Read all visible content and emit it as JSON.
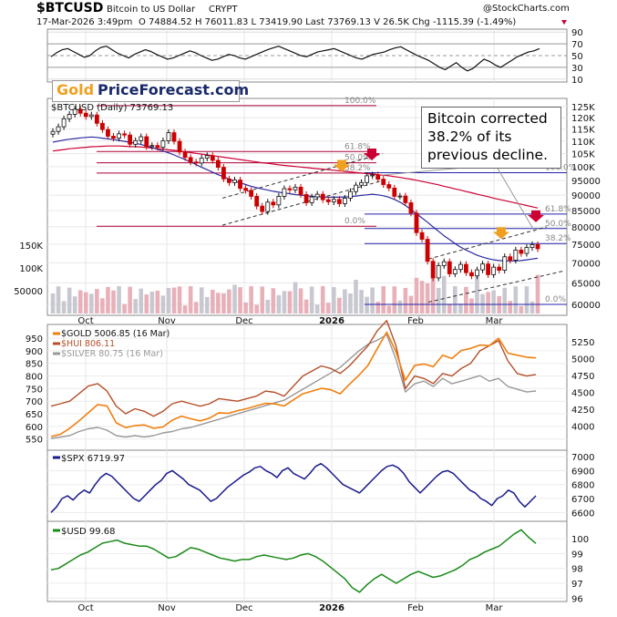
{
  "header": {
    "symbol": "$BTCUSD",
    "name": "Bitcoin to US Dollar",
    "exchange": "CRYPT",
    "brand": "@StockCharts.com",
    "datetime": "17-Mar-2026 3:49pm",
    "ohlc": "O 74884.52  H 76011.83  L 73419.90  Last 73769.13  V 26.5K  Chg -1115.39 (-1.49%)"
  },
  "logo": {
    "gold": "Gold",
    "rest": "PriceForecast.com"
  },
  "annotation": [
    "Bitcoin corrected",
    "38.2% of its",
    "previous decline."
  ],
  "colors": {
    "candle_up": "#111111",
    "candle_down": "#cc0000",
    "ma_short": "#2a2aa0",
    "ma_long": "#cc0033",
    "gold": "#f07f0f",
    "hui": "#b5502a",
    "silver": "#999999",
    "spx": "#1a1a8c",
    "usd": "#1a8a1a",
    "fib_red": "#aa0033",
    "fib_blue": "#2222aa",
    "arrow_orange": "#f0a020",
    "arrow_red": "#cc0033"
  },
  "chart_data": [
    {
      "type": "line",
      "panel": "RSI",
      "y_ticks": [
        10,
        30,
        50,
        70,
        90
      ],
      "ylim": [
        5,
        95
      ],
      "values": [
        48,
        55,
        60,
        62,
        57,
        52,
        47,
        50,
        58,
        64,
        66,
        60,
        54,
        50,
        46,
        52,
        56,
        60,
        57,
        52,
        48,
        44,
        46,
        50,
        54,
        58,
        55,
        50,
        46,
        42,
        44,
        48,
        52,
        50,
        46,
        44,
        48,
        52,
        56,
        60,
        63,
        66,
        62,
        58,
        54,
        50,
        48,
        52,
        56,
        58,
        60,
        62,
        58,
        54,
        50,
        46,
        44,
        48,
        52,
        54,
        56,
        60,
        63,
        65,
        60,
        55,
        50,
        46,
        42,
        36,
        30,
        26,
        32,
        38,
        30,
        24,
        28,
        36,
        44,
        40,
        34,
        30,
        36,
        42,
        48,
        52,
        56,
        58,
        62
      ]
    },
    {
      "type": "candlestick",
      "panel": "price",
      "title": "$BTCUSD (Daily) 73769.13",
      "y_ticks": [
        60000,
        65000,
        70000,
        75000,
        80000,
        85000,
        90000,
        95000,
        100000,
        105000,
        110000,
        115000,
        120000,
        125000
      ],
      "y_tick_labels": [
        "60000",
        "65000",
        "70000",
        "75000",
        "80000",
        "85000",
        "90000",
        "95000",
        "100K",
        "105K",
        "110K",
        "115K",
        "120K",
        "125K"
      ],
      "ylim": [
        58000,
        128000
      ],
      "scale": "log",
      "x_labels": [
        "Oct",
        "Nov",
        "Dec",
        "2026",
        "Feb",
        "Mar"
      ],
      "close": [
        114000,
        116000,
        119500,
        121500,
        123800,
        122000,
        120500,
        121200,
        117500,
        114800,
        112000,
        111200,
        113000,
        112500,
        108700,
        110200,
        111800,
        107800,
        108200,
        107500,
        110100,
        113500,
        109900,
        105600,
        103500,
        101800,
        101400,
        103300,
        104200,
        102400,
        99800,
        95600,
        94300,
        95200,
        92300,
        91600,
        89600,
        86400,
        84700,
        87700,
        86800,
        89600,
        92200,
        91800,
        92700,
        90200,
        87500,
        89400,
        90300,
        88500,
        87800,
        88600,
        87200,
        89000,
        91200,
        93400,
        94300,
        96700,
        97000,
        95500,
        93600,
        92400,
        89600,
        89700,
        87500,
        84200,
        78300,
        76400,
        70400,
        66200,
        69300,
        70300,
        67200,
        68300,
        69600,
        67500,
        66700,
        68200,
        69700,
        67000,
        68900,
        68100,
        71600,
        70700,
        73400,
        72500,
        74100,
        74900,
        73769
      ],
      "ma_short": [
        109500,
        110000,
        110400,
        110800,
        111000,
        111300,
        111500,
        111700,
        111500,
        111200,
        110900,
        110600,
        110300,
        109900,
        109500,
        109100,
        108600,
        108000,
        107400,
        106700,
        106000,
        105300,
        104500,
        103600,
        102700,
        101800,
        100800,
        99800,
        98900,
        98000,
        97100,
        96300,
        95500,
        94800,
        94200,
        93600,
        93000,
        92500,
        92100,
        91700,
        91300,
        91000,
        90700,
        90500,
        90200,
        90000,
        89800,
        89600,
        89500,
        89400,
        89300,
        89300,
        89300,
        89400,
        89500,
        89700,
        89900,
        90100,
        90300,
        90100,
        89800,
        89300,
        88600,
        87700,
        86600,
        85300,
        84000,
        82700,
        81400,
        80000,
        78700,
        77400,
        76300,
        75200,
        74200,
        73400,
        72700,
        72000,
        71500,
        71100,
        70800,
        70600,
        70500,
        70500,
        70500,
        70600,
        70800,
        71000,
        71200
      ],
      "ma_long": [
        106000,
        106300,
        106600,
        106900,
        107100,
        107300,
        107500,
        107700,
        107800,
        107900,
        108000,
        108000,
        108000,
        107900,
        107800,
        107700,
        107600,
        107400,
        107200,
        107000,
        106800,
        106500,
        106300,
        106000,
        105700,
        105400,
        105100,
        104800,
        104500,
        104200,
        103900,
        103600,
        103300,
        103000,
        102700,
        102400,
        102100,
        101800,
        101500,
        101300,
        101000,
        100700,
        100500,
        100300,
        100100,
        99900,
        99700,
        99500,
        99300,
        99100,
        98900,
        98700,
        98500,
        98300,
        98100,
        97900,
        97700,
        97500,
        97300,
        97100,
        96900,
        96700,
        96400,
        96100,
        95800,
        95500,
        95100,
        94700,
        94300,
        93900,
        93500,
        93000,
        92600,
        92100,
        91700,
        91200,
        90800,
        90300,
        89900,
        89500,
        89000,
        88600,
        88200,
        87800,
        87400,
        87000,
        86600,
        86200,
        85800
      ],
      "volume_axis": {
        "ticks": [
          50000,
          100000,
          150000
        ],
        "labels": [
          "50000",
          "100K",
          "150K"
        ]
      },
      "fib_levels": [
        {
          "label": "100.0%",
          "value": 125500,
          "color": "red"
        },
        {
          "label": "61.8%",
          "value": 105800,
          "color": "red"
        },
        {
          "label": "50.0%",
          "value": 101500,
          "color": "red"
        },
        {
          "label": "38.2%",
          "value": 97700,
          "color": "red"
        },
        {
          "label": "0.0%",
          "value": 80200,
          "color": "red"
        },
        {
          "label": "100.0%",
          "value": 97800,
          "color": "blue"
        },
        {
          "label": "61.8%",
          "value": 83900,
          "color": "blue"
        },
        {
          "label": "50.0%",
          "value": 79500,
          "color": "blue"
        },
        {
          "label": "38.2%",
          "value": 75200,
          "color": "blue"
        },
        {
          "label": "0.0%",
          "value": 60000,
          "color": "blue"
        }
      ]
    },
    {
      "type": "line",
      "panel": "metals",
      "series": [
        {
          "name": "$GOLD 5006.85 (16 Mar)",
          "values": [
            3850,
            3880,
            3970,
            4080,
            4200,
            4320,
            4300,
            4050,
            3980,
            4010,
            4020,
            3970,
            3990,
            4090,
            4150,
            4110,
            4080,
            4120,
            4200,
            4190,
            4230,
            4260,
            4300,
            4340,
            4330,
            4300,
            4390,
            4480,
            4520,
            4560,
            4540,
            4480,
            4620,
            4750,
            4900,
            5150,
            5390,
            5100,
            4680,
            4900,
            4920,
            4880,
            5050,
            5000,
            5120,
            5150,
            5200,
            5190,
            5300,
            5080,
            5050,
            5020,
            5010
          ]
        },
        {
          "name": "$HUI 806.11",
          "values": [
            680,
            690,
            700,
            730,
            760,
            770,
            740,
            680,
            650,
            670,
            660,
            640,
            660,
            690,
            700,
            690,
            680,
            690,
            710,
            705,
            700,
            710,
            720,
            740,
            735,
            720,
            760,
            800,
            820,
            840,
            830,
            810,
            840,
            880,
            920,
            980,
            1020,
            920,
            750,
            800,
            790,
            770,
            810,
            800,
            830,
            850,
            900,
            920,
            940,
            860,
            810,
            800,
            806
          ]
        },
        {
          "name": "$SILVER 80.75 (16 Mar)",
          "values": [
            46,
            47,
            48,
            51,
            53,
            54,
            52,
            48,
            47,
            48,
            47,
            48,
            50,
            51,
            53,
            54,
            56,
            58,
            60,
            62,
            64,
            66,
            68,
            70,
            72,
            74,
            78,
            82,
            86,
            90,
            94,
            98,
            104,
            110,
            115,
            118,
            122,
            104,
            80,
            86,
            88,
            84,
            90,
            86,
            88,
            90,
            92,
            88,
            90,
            84,
            82,
            80,
            80.75
          ]
        }
      ],
      "y_ticks_left": [
        550,
        600,
        650,
        700,
        750,
        800,
        850,
        900,
        950
      ],
      "y_ticks_right": [
        4000,
        4250,
        4500,
        4750,
        5000,
        5250
      ]
    },
    {
      "type": "line",
      "panel": "SPX",
      "series": [
        {
          "name": "$SPX 6719.97",
          "values": [
            6600,
            6640,
            6700,
            6720,
            6690,
            6730,
            6760,
            6740,
            6800,
            6850,
            6880,
            6860,
            6820,
            6780,
            6740,
            6700,
            6680,
            6720,
            6760,
            6800,
            6830,
            6880,
            6900,
            6870,
            6840,
            6800,
            6780,
            6760,
            6720,
            6680,
            6700,
            6740,
            6780,
            6810,
            6840,
            6870,
            6890,
            6920,
            6930,
            6900,
            6880,
            6850,
            6900,
            6920,
            6880,
            6860,
            6840,
            6880,
            6930,
            6950,
            6920,
            6880,
            6840,
            6800,
            6780,
            6760,
            6740,
            6780,
            6820,
            6860,
            6900,
            6930,
            6940,
            6920,
            6880,
            6820,
            6780,
            6740,
            6780,
            6820,
            6860,
            6890,
            6900,
            6880,
            6840,
            6800,
            6760,
            6740,
            6700,
            6680,
            6650,
            6700,
            6720,
            6760,
            6740,
            6680,
            6640,
            6680,
            6719.97
          ]
        }
      ],
      "y_ticks": [
        6600,
        6700,
        6800,
        6900,
        7000
      ]
    },
    {
      "type": "line",
      "panel": "USD",
      "series": [
        {
          "name": "$USD 99.68",
          "values": [
            97.9,
            98.0,
            98.3,
            98.6,
            98.9,
            99.1,
            99.4,
            99.7,
            99.8,
            99.9,
            99.7,
            99.6,
            99.5,
            99.5,
            99.3,
            99.0,
            98.7,
            98.8,
            99.1,
            99.4,
            99.3,
            99.1,
            98.9,
            98.7,
            98.6,
            98.5,
            98.6,
            98.6,
            98.8,
            98.9,
            98.8,
            98.7,
            98.6,
            98.7,
            98.9,
            99.0,
            98.8,
            98.5,
            98.1,
            97.7,
            97.3,
            96.7,
            96.4,
            96.9,
            97.3,
            97.6,
            97.3,
            97.0,
            97.3,
            97.6,
            97.8,
            97.6,
            97.4,
            97.5,
            97.7,
            97.9,
            98.2,
            98.6,
            98.8,
            99.1,
            99.3,
            99.5,
            99.9,
            100.3,
            100.6,
            100.1,
            99.68
          ]
        }
      ],
      "y_ticks": [
        96,
        97,
        98,
        99,
        100
      ]
    }
  ]
}
